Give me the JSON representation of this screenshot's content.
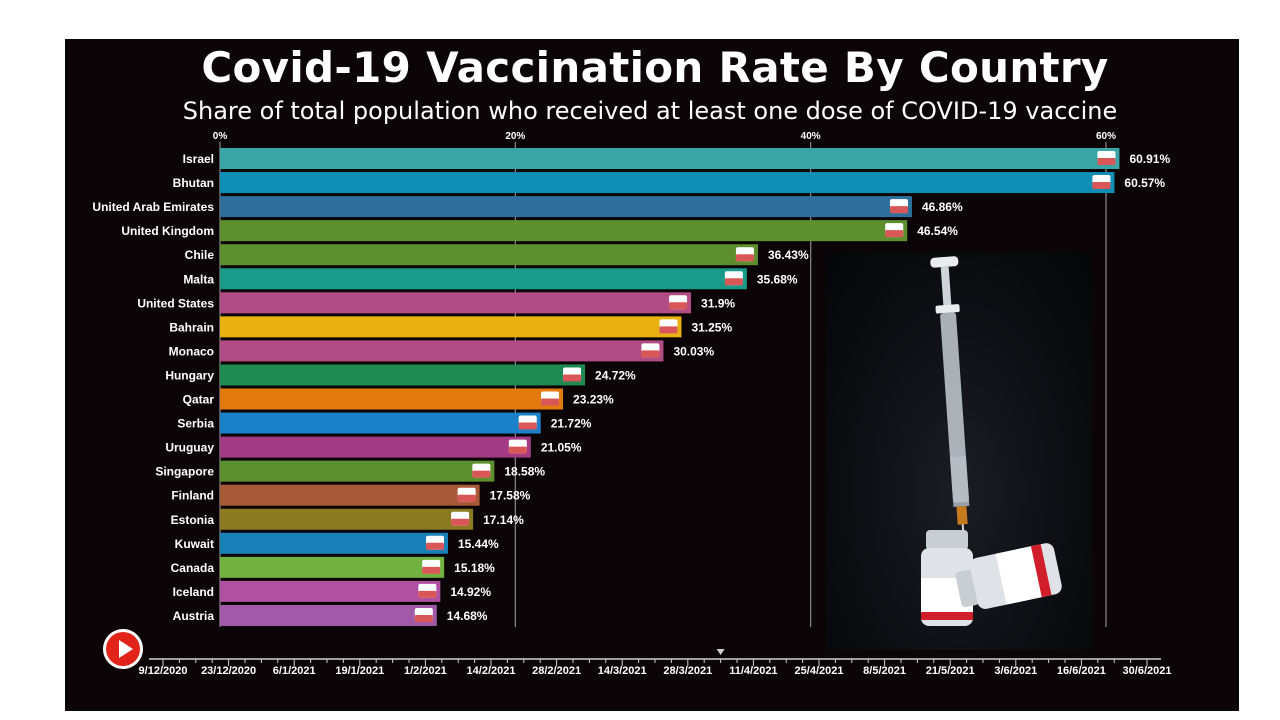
{
  "header": {
    "title": "Covid-19 Vaccination Rate By Country",
    "subtitle": "Share of total population who received at least one dose of COVID-19 vaccine"
  },
  "chart_data": {
    "type": "bar",
    "orientation": "horizontal",
    "title": "Covid-19 Vaccination Rate By Country",
    "subtitle": "Share of total population who received at least one dose of COVID-19 vaccine",
    "xlim": [
      0,
      60.91
    ],
    "x_ticks": [
      "0%",
      "20%",
      "40%",
      "60%"
    ],
    "x_tick_values": [
      0,
      20,
      40,
      60
    ],
    "grid": true,
    "categories": [
      "Israel",
      "Bhutan",
      "United Arab Emirates",
      "United Kingdom",
      "Chile",
      "Malta",
      "United States",
      "Bahrain",
      "Monaco",
      "Hungary",
      "Qatar",
      "Serbia",
      "Uruguay",
      "Singapore",
      "Finland",
      "Estonia",
      "Kuwait",
      "Canada",
      "Iceland",
      "Austria"
    ],
    "values": [
      60.91,
      60.57,
      46.86,
      46.54,
      36.43,
      35.68,
      31.9,
      31.25,
      30.03,
      24.72,
      23.23,
      21.72,
      21.05,
      18.58,
      17.58,
      17.14,
      15.44,
      15.18,
      14.92,
      14.68
    ],
    "labels": [
      "60.91%",
      "60.57%",
      "46.86%",
      "46.54%",
      "36.43%",
      "35.68%",
      "31.9%",
      "31.25%",
      "30.03%",
      "24.72%",
      "23.23%",
      "21.72%",
      "21.05%",
      "18.58%",
      "17.58%",
      "17.14%",
      "15.44%",
      "15.18%",
      "14.92%",
      "14.68%"
    ],
    "colors": [
      "#3aa6a6",
      "#0f8fb5",
      "#2f6f9c",
      "#5e8f2e",
      "#5e8f2e",
      "#1a9a88",
      "#b24c84",
      "#e8b010",
      "#b24c84",
      "#1f8a52",
      "#e27a10",
      "#1a80c8",
      "#a23a84",
      "#5e8f2e",
      "#a85a38",
      "#8a7a20",
      "#1a80b8",
      "#72b040",
      "#b050a0",
      "#a05aa8"
    ],
    "timeline": {
      "dates": [
        "9/12/2020",
        "23/12/2020",
        "6/1/2021",
        "19/1/2021",
        "1/2/2021",
        "14/2/2021",
        "28/2/2021",
        "14/3/2021",
        "28/3/2021",
        "11/4/2021",
        "25/4/2021",
        "8/5/2021",
        "21/5/2021",
        "3/6/2021",
        "16/6/2021",
        "30/6/2021"
      ],
      "current_index": 8.5
    }
  }
}
